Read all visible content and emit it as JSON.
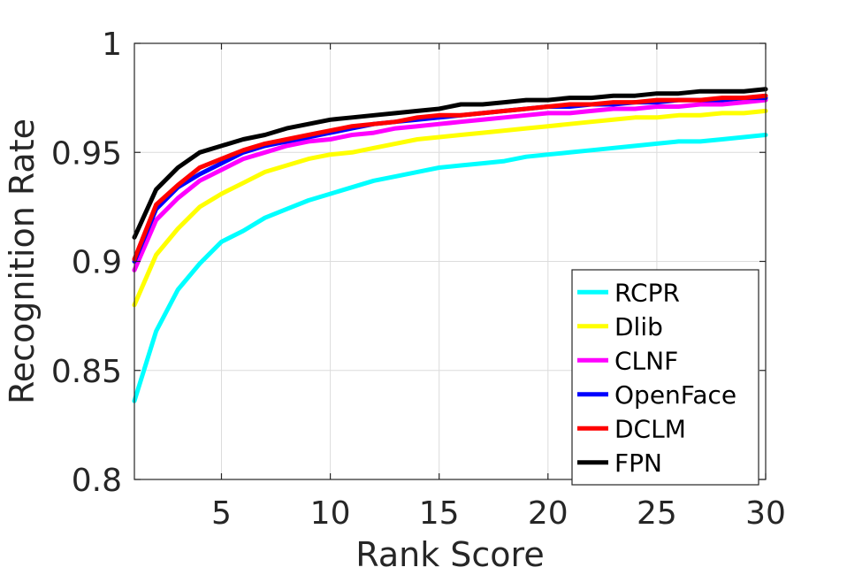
{
  "chart_data": {
    "type": "line",
    "title": "",
    "xlabel": "Rank Score",
    "ylabel": "Recognition Rate",
    "xlim": [
      1,
      30
    ],
    "ylim": [
      0.8,
      1
    ],
    "xticks": [
      5,
      10,
      15,
      20,
      25,
      30
    ],
    "yticks": [
      0.8,
      0.85,
      0.9,
      0.95,
      1
    ],
    "ytick_labels": [
      "0.8",
      "0.85",
      "0.9",
      "0.95",
      "1"
    ],
    "grid": true,
    "legend_position": "bottom-right",
    "x": [
      1,
      2,
      3,
      4,
      5,
      6,
      7,
      8,
      9,
      10,
      11,
      12,
      13,
      14,
      15,
      16,
      17,
      18,
      19,
      20,
      21,
      22,
      23,
      24,
      25,
      26,
      27,
      28,
      29,
      30
    ],
    "series": [
      {
        "name": "RCPR",
        "color": "#00ffff",
        "values": [
          0.836,
          0.868,
          0.887,
          0.899,
          0.909,
          0.914,
          0.92,
          0.924,
          0.928,
          0.931,
          0.934,
          0.937,
          0.939,
          0.941,
          0.943,
          0.944,
          0.945,
          0.946,
          0.948,
          0.949,
          0.95,
          0.951,
          0.952,
          0.953,
          0.954,
          0.955,
          0.955,
          0.956,
          0.957,
          0.958
        ]
      },
      {
        "name": "Dlib",
        "color": "#ffff00",
        "values": [
          0.88,
          0.903,
          0.915,
          0.925,
          0.931,
          0.936,
          0.941,
          0.944,
          0.947,
          0.949,
          0.95,
          0.952,
          0.954,
          0.956,
          0.957,
          0.958,
          0.959,
          0.96,
          0.961,
          0.962,
          0.963,
          0.964,
          0.965,
          0.966,
          0.966,
          0.967,
          0.967,
          0.968,
          0.968,
          0.969
        ]
      },
      {
        "name": "CLNF",
        "color": "#ff00ff",
        "values": [
          0.896,
          0.919,
          0.929,
          0.937,
          0.942,
          0.947,
          0.95,
          0.953,
          0.955,
          0.956,
          0.958,
          0.959,
          0.961,
          0.962,
          0.963,
          0.964,
          0.965,
          0.966,
          0.967,
          0.968,
          0.968,
          0.969,
          0.97,
          0.97,
          0.971,
          0.971,
          0.972,
          0.972,
          0.973,
          0.974
        ]
      },
      {
        "name": "OpenFace",
        "color": "#0000ff",
        "values": [
          0.9,
          0.924,
          0.934,
          0.94,
          0.945,
          0.95,
          0.953,
          0.955,
          0.957,
          0.959,
          0.961,
          0.963,
          0.964,
          0.965,
          0.966,
          0.967,
          0.968,
          0.969,
          0.97,
          0.971,
          0.971,
          0.972,
          0.972,
          0.973,
          0.973,
          0.974,
          0.974,
          0.974,
          0.975,
          0.975
        ]
      },
      {
        "name": "DCLM",
        "color": "#ff0000",
        "values": [
          0.901,
          0.926,
          0.935,
          0.943,
          0.947,
          0.951,
          0.954,
          0.956,
          0.958,
          0.96,
          0.962,
          0.963,
          0.964,
          0.966,
          0.967,
          0.967,
          0.968,
          0.969,
          0.97,
          0.971,
          0.972,
          0.972,
          0.973,
          0.973,
          0.974,
          0.974,
          0.974,
          0.975,
          0.975,
          0.976
        ]
      },
      {
        "name": "FPN",
        "color": "#000000",
        "values": [
          0.911,
          0.933,
          0.943,
          0.95,
          0.953,
          0.956,
          0.958,
          0.961,
          0.963,
          0.965,
          0.966,
          0.967,
          0.968,
          0.969,
          0.97,
          0.972,
          0.972,
          0.973,
          0.974,
          0.974,
          0.975,
          0.975,
          0.976,
          0.976,
          0.977,
          0.977,
          0.978,
          0.978,
          0.978,
          0.979
        ]
      }
    ]
  }
}
